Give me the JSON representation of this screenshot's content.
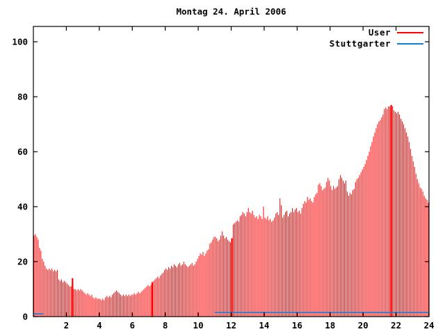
{
  "title": "Montag 24. April 2006",
  "colors": {
    "background": "#ffffff",
    "axis": "#000000",
    "user_series": "#ff0000",
    "stuttgarter_series": "#0e7fd8"
  },
  "legend": {
    "position": "top-right-inside",
    "entries": [
      {
        "label": "User",
        "color": "#ff0000"
      },
      {
        "label": "Stuttgarter",
        "color": "#0e7fd8"
      }
    ]
  },
  "chart_data": {
    "type": "bar",
    "subtype": "gnuplot-impulses",
    "title": "Montag 24. April 2006",
    "xlabel": "",
    "ylabel": "",
    "x_unit": "hour of day",
    "sample_interval_minutes": 5,
    "xlim": [
      0,
      24
    ],
    "ylim": [
      0,
      105.5
    ],
    "x_tick_values": [
      2,
      4,
      6,
      8,
      10,
      12,
      14,
      16,
      18,
      20,
      22,
      24
    ],
    "y_tick_values": [
      0,
      20,
      40,
      60,
      80,
      100
    ],
    "grid": false,
    "series": [
      {
        "name": "User",
        "style": "impulses",
        "color": "#ff0000",
        "wide_indices": [
          28,
          86,
          144,
          260
        ],
        "values": [
          29.5,
          30,
          29,
          28,
          25,
          24,
          21,
          20,
          18.5,
          17.5,
          17,
          17.5,
          17,
          17.5,
          16.5,
          17,
          16.5,
          17,
          13.5,
          13,
          13.5,
          12.5,
          13,
          12.5,
          12,
          11.5,
          11,
          11,
          14,
          10,
          10,
          9.5,
          10,
          9.5,
          10,
          9.5,
          9,
          8.5,
          8,
          8.5,
          8,
          7.5,
          8,
          7,
          6.5,
          7,
          6.5,
          6.5,
          6.5,
          6,
          6.5,
          6,
          7,
          7.5,
          7,
          7.5,
          7,
          8,
          8.5,
          9,
          9.5,
          9,
          8.5,
          8,
          7.5,
          8,
          7.5,
          8,
          7.5,
          8,
          7.5,
          8,
          8,
          8.5,
          8,
          8.5,
          9,
          8.5,
          9,
          9.5,
          10,
          10.5,
          11,
          11.5,
          11,
          11.5,
          12.5,
          13,
          13.5,
          14,
          14.5,
          14,
          15,
          15.5,
          16,
          17,
          17.5,
          17,
          18,
          17.5,
          18.5,
          18,
          19,
          18.5,
          18,
          19,
          19.5,
          18.5,
          19,
          20,
          19,
          18.5,
          18,
          18.5,
          19,
          19.5,
          18.5,
          19,
          20,
          21,
          22,
          23,
          22.5,
          23.5,
          22,
          23,
          24,
          24.5,
          26.5,
          27,
          28,
          29,
          29,
          28.5,
          27.5,
          28,
          29.5,
          31,
          29.5,
          28.5,
          29,
          28,
          27.5,
          27,
          28.5,
          33.5,
          34,
          34.5,
          35,
          34.5,
          36.5,
          37,
          38,
          37.5,
          36.5,
          38,
          39.5,
          38,
          37.5,
          38.5,
          37,
          36,
          36.5,
          35.5,
          37,
          36.5,
          35.5,
          40,
          36,
          35.5,
          36.5,
          35,
          35.5,
          34.5,
          35,
          36,
          37.5,
          38,
          37,
          43,
          40.5,
          36,
          37,
          38,
          38.5,
          36.5,
          37.5,
          38,
          39.5,
          38,
          39,
          39.5,
          38,
          38.5,
          37.5,
          39.5,
          41,
          42,
          41.5,
          43.5,
          42.5,
          43,
          42,
          41.5,
          43.5,
          44.5,
          45,
          48,
          48.5,
          47.5,
          46,
          46.5,
          47,
          49,
          50.5,
          49.5,
          47.5,
          46,
          47.5,
          46.5,
          47,
          47.5,
          50,
          51.5,
          50.5,
          49.5,
          48.5,
          49.5,
          45.5,
          44,
          45,
          44.5,
          46,
          46.5,
          49,
          50,
          50.5,
          51.5,
          52.5,
          53.5,
          54.5,
          55.5,
          57,
          58.5,
          60,
          62,
          63.5,
          65.5,
          67,
          68.5,
          70,
          71,
          71.5,
          72.5,
          73.5,
          75.5,
          76,
          75.5,
          76.5,
          76.5,
          77,
          76.5,
          75,
          74.5,
          74,
          74.5,
          73.5,
          72,
          71,
          70,
          68.5,
          67,
          65.5,
          63.5,
          61,
          58.5,
          56.5,
          54.5,
          52,
          50,
          48.5,
          47,
          46.5,
          45.5,
          44,
          43,
          42.5,
          41.5
        ]
      },
      {
        "name": "Stuttgarter",
        "style": "line",
        "color": "#0e7fd8",
        "segments": [
          {
            "x_from": 0,
            "x_to": 0.6,
            "value": 1
          },
          {
            "x_from": 11,
            "x_to": 24,
            "value": 1.5
          }
        ]
      }
    ]
  }
}
